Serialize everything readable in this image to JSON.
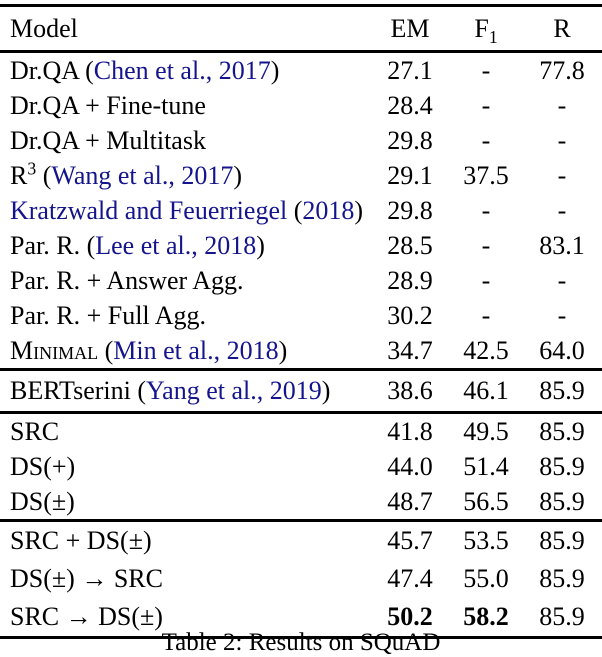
{
  "colors": {
    "background": "#ffffff",
    "text": "#000000",
    "rule": "#000000",
    "citation_blue": "#14148C"
  },
  "table": {
    "header": {
      "model": "Model",
      "em": "EM",
      "f1_base": "F",
      "f1_sub": "1",
      "r": "R"
    },
    "rows": [
      {
        "pre": "Dr.QA (",
        "cite": "Chen et al., 2017",
        "post": ")",
        "em": "27.1",
        "f1": "-",
        "r": "77.8"
      },
      {
        "pre": "Dr.QA + Fine-tune",
        "em": "28.4",
        "f1": "-",
        "r": "-"
      },
      {
        "pre": "Dr.QA + Multitask",
        "em": "29.8",
        "f1": "-",
        "r": "-"
      },
      {
        "pre": "R",
        "sup": "3",
        "mid": " (",
        "cite": "Wang et al., 2017",
        "post": ")",
        "em": "29.1",
        "f1": "37.5",
        "r": "-"
      },
      {
        "cite_name": "Kratzwald and Feuerriegel",
        "mid": " (",
        "cite": "2018",
        "post": ")",
        "em": "29.8",
        "f1": "-",
        "r": "-"
      },
      {
        "pre": "Par. R. (",
        "cite": "Lee et al., 2018",
        "post": ")",
        "em": "28.5",
        "f1": "-",
        "r": "83.1"
      },
      {
        "pre": "Par. R. + Answer Agg.",
        "em": "28.9",
        "f1": "-",
        "r": "-"
      },
      {
        "pre": "Par. R. + Full Agg.",
        "em": "30.2",
        "f1": "-",
        "r": "-"
      },
      {
        "sc": "Minimal",
        "mid": " (",
        "cite": "Min et al., 2018",
        "post": ")",
        "em": "34.7",
        "f1": "42.5",
        "r": "64.0"
      },
      {
        "pre": "BERTserini (",
        "cite": "Yang et al., 2019",
        "post": ")",
        "em": "38.6",
        "f1": "46.1",
        "r": "85.9"
      },
      {
        "pre": "SRC",
        "em": "41.8",
        "f1": "49.5",
        "r": "85.9"
      },
      {
        "pre": "DS(+)",
        "em": "44.0",
        "f1": "51.4",
        "r": "85.9"
      },
      {
        "pre": "DS(±)",
        "em": "48.7",
        "f1": "56.5",
        "r": "85.9"
      },
      {
        "pre": "SRC + DS(±)",
        "em": "45.7",
        "f1": "53.5",
        "r": "85.9"
      },
      {
        "pre": "DS(±) → SRC",
        "em": "47.4",
        "f1": "55.0",
        "r": "85.9"
      },
      {
        "pre": "SRC → DS(±)",
        "em": "50.2",
        "f1": "58.2",
        "r": "85.9"
      }
    ],
    "caption": "Table 2: Results on SQuAD"
  }
}
